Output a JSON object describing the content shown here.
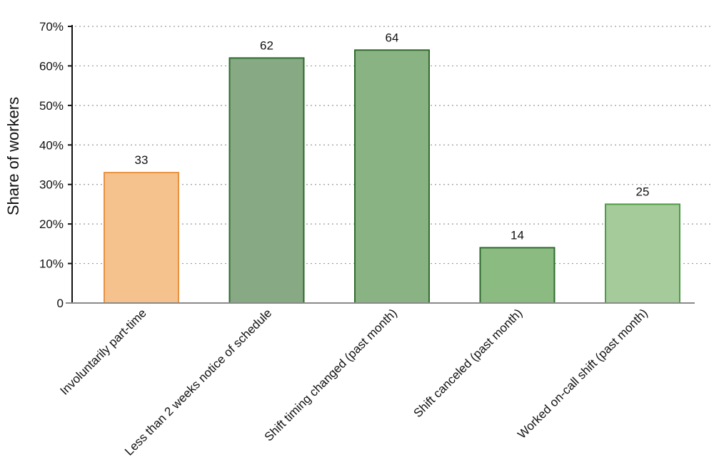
{
  "chart_data": {
    "type": "bar",
    "title": "",
    "xlabel": "",
    "ylabel": "Share of workers",
    "ylim": [
      0,
      70
    ],
    "yticks": [
      0,
      10,
      20,
      30,
      40,
      50,
      60,
      70
    ],
    "ytick_labels": [
      "0",
      "10%",
      "20%",
      "30%",
      "40%",
      "50%",
      "60%",
      "70%"
    ],
    "grid": "horizontal dotted",
    "categories": [
      "Involuntarily part-time",
      "Less than 2 weeks notice of schedule",
      "Shift timing changed (past month)",
      "Shift canceled (past month)",
      "Worked on-call shift (past month)"
    ],
    "values": [
      33,
      62,
      64,
      14,
      25
    ],
    "data_labels": [
      "33",
      "62",
      "64",
      "14",
      "25"
    ],
    "bar_fill_colors": [
      "#f5c28d",
      "#87a983",
      "#8ab383",
      "#8bbb80",
      "#a5cb9b"
    ],
    "bar_edge_colors": [
      "#e8913f",
      "#2e6b2e",
      "#2e6b2e",
      "#2e6b2e",
      "#4f9a47"
    ]
  }
}
